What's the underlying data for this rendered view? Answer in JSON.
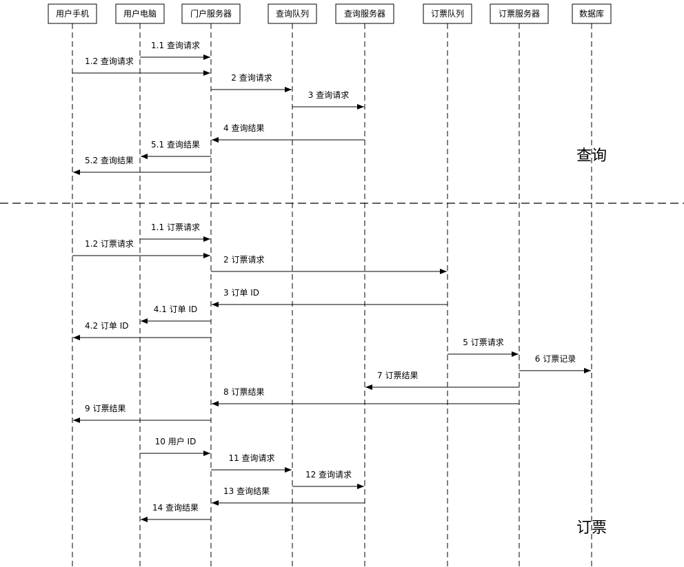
{
  "participants": [
    "用户手机",
    "用户电脑",
    "门户服务器",
    "查询队列",
    "查询服务器",
    "订票队列",
    "订票服务器",
    "数据库"
  ],
  "sections": [
    {
      "label": "查询",
      "messages": [
        "1.1 查询请求",
        "1.2 查询请求",
        "2 查询请求",
        "3 查询请求",
        "4 查询结果",
        "5.1 查询结果",
        "5.2 查询结果"
      ]
    },
    {
      "label": "订票",
      "messages": [
        "1.1 订票请求",
        "1.2 订票请求",
        "2 订票请求",
        "3 订单 ID",
        "4.1 订单 ID",
        "4.2 订单 ID",
        "5 订票请求",
        "6 订票记录",
        "7 订票结果",
        "8 订票结果",
        "9 订票结果",
        "10 用户 ID",
        "11 查询请求",
        "12 查询请求",
        "13 查询结果",
        "14 查询结果"
      ]
    }
  ]
}
